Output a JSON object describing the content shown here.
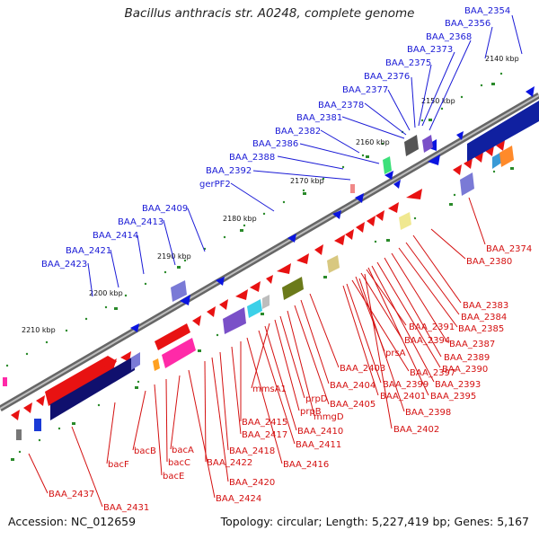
{
  "header": {
    "title": "Bacillus anthracis str. A0248, complete genome"
  },
  "footer": {
    "accession": "Accession: NC_012659",
    "topology": "Topology: circular; Length: 5,227,419 bp; Genes: 5,167"
  },
  "kbp_markers": [
    "2140 kbp",
    "2150 kbp",
    "2160 kbp",
    "2170 kbp",
    "2180 kbp",
    "2190 kbp",
    "2200 kbp",
    "2210 kbp"
  ],
  "blue_labels": [
    "BAA_2354",
    "BAA_2356",
    "BAA_2368",
    "BAA_2373",
    "BAA_2375",
    "BAA_2376",
    "BAA_2377",
    "BAA_2378",
    "BAA_2381",
    "BAA_2382",
    "BAA_2386",
    "BAA_2388",
    "BAA_2392",
    "gerPF2",
    "BAA_2409",
    "BAA_2413",
    "BAA_2414",
    "BAA_2421",
    "BAA_2423"
  ],
  "red_labels": [
    "BAA_2374",
    "BAA_2380",
    "BAA_2383",
    "BAA_2384",
    "BAA_2385",
    "BAA_2387",
    "BAA_2389",
    "BAA_2390",
    "BAA_2391",
    "BAA_2394",
    "prsA",
    "BAA_2393",
    "BAA_2395",
    "BAA_2397",
    "BAA_2399",
    "BAA_2401",
    "BAA_2398",
    "BAA_2402",
    "BAA_2403",
    "BAA_2404",
    "BAA_2405",
    "mmgD",
    "prpD",
    "prpB",
    "mmsA1",
    "BAA_2410",
    "BAA_2411",
    "BAA_2415",
    "BAA_2417",
    "BAA_2416",
    "BAA_2418",
    "BAA_2422",
    "BAA_2420",
    "BAA_2424",
    "bacA",
    "bacB",
    "bacC",
    "bacE",
    "bacF",
    "BAA_2437",
    "BAA_2431"
  ],
  "colors": {
    "forward": "#e81212",
    "reverse": "#1414e6",
    "label_blue": "#1a1ad6",
    "label_red": "#d41010",
    "backbone": "#7d7d7d",
    "tick": "#2a7a2a"
  }
}
